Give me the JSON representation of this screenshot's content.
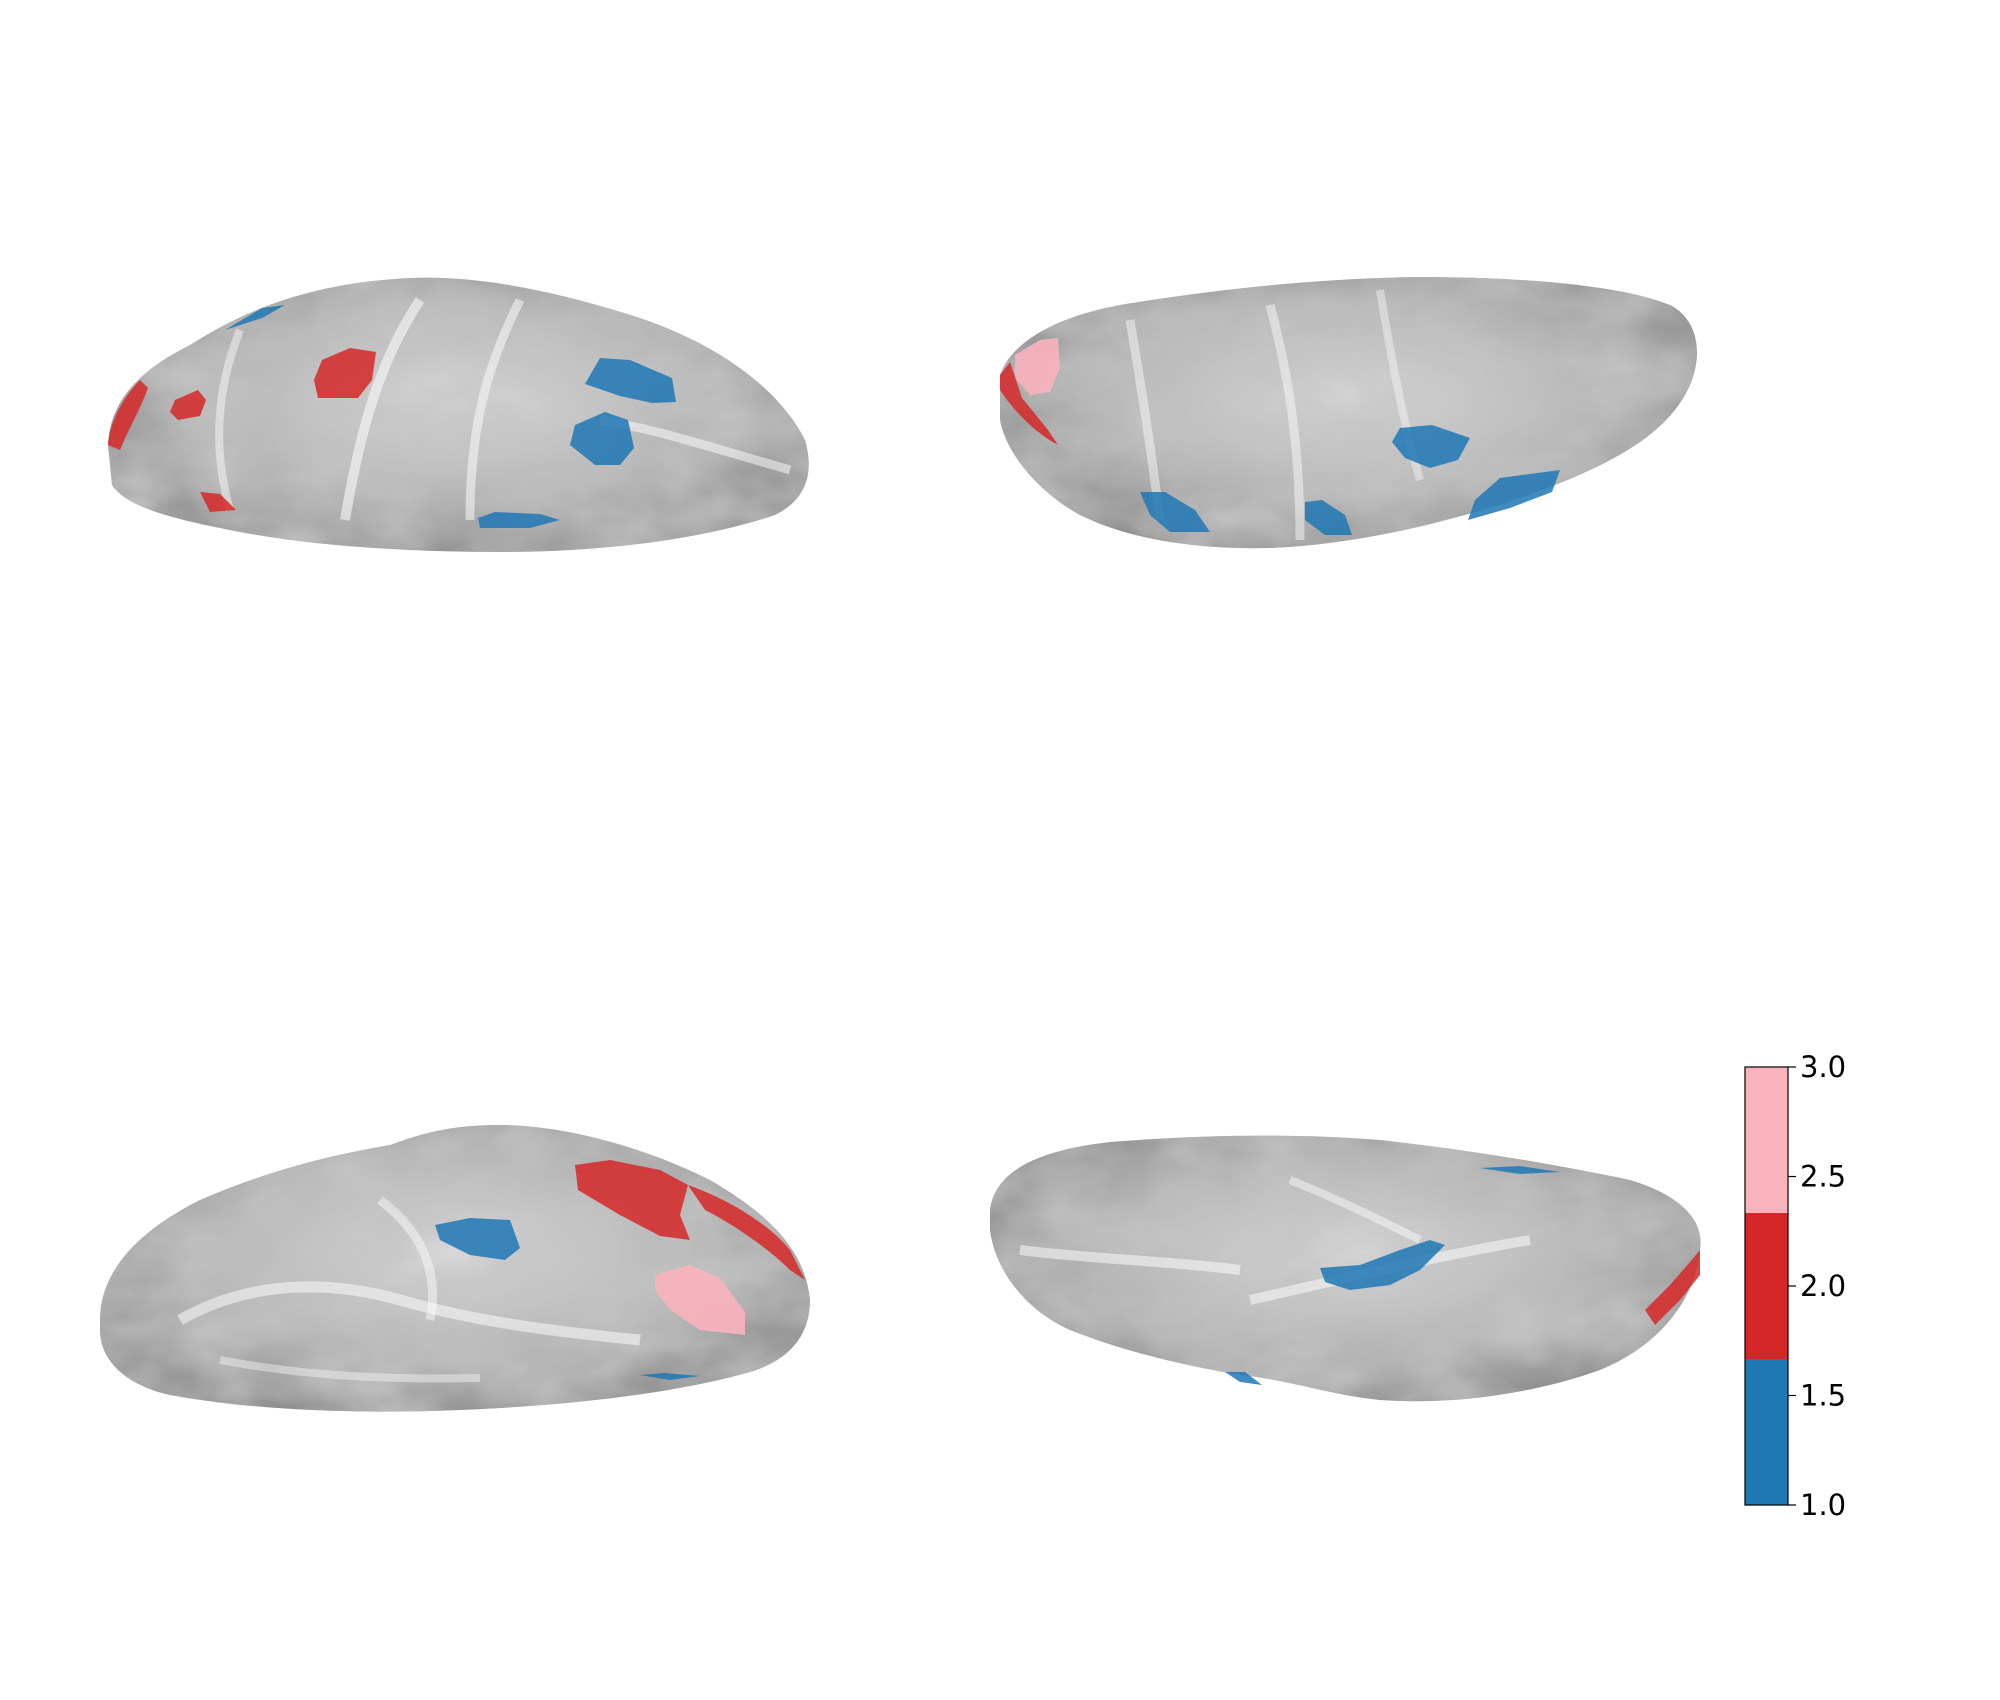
{
  "figure": {
    "views": [
      {
        "name": "lateral-top-left"
      },
      {
        "name": "lateral-top-right"
      },
      {
        "name": "medial-bottom-left"
      },
      {
        "name": "ventral-bottom-right"
      }
    ],
    "surface_color": "#a9a9a9"
  },
  "colorbar": {
    "range": [
      1.0,
      3.0
    ],
    "bins": [
      {
        "from": 1.0,
        "to": 1.6667,
        "color": "#1f77b4"
      },
      {
        "from": 1.6667,
        "to": 2.3333,
        "color": "#d62728"
      },
      {
        "from": 2.3333,
        "to": 3.0,
        "color": "#f8b3bd"
      }
    ],
    "ticks": [
      {
        "value": 3.0,
        "label": "3.0"
      },
      {
        "value": 2.5,
        "label": "2.5"
      },
      {
        "value": 2.0,
        "label": "2.0"
      },
      {
        "value": 1.5,
        "label": "1.5"
      },
      {
        "value": 1.0,
        "label": "1.0"
      }
    ]
  }
}
